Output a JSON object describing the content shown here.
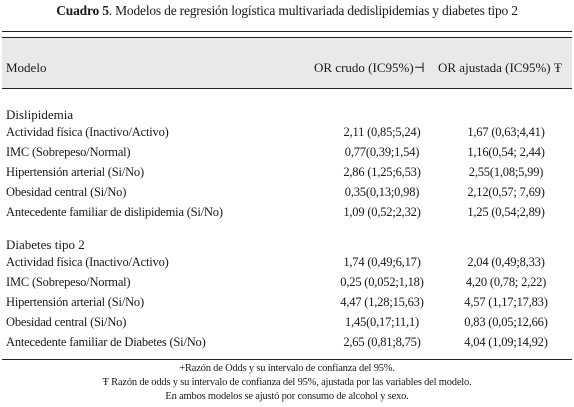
{
  "caption": {
    "number": "Cuadro 5",
    "text": ". Modelos de regresión logística multivariada dedislipidemias y diabetes tipo 2"
  },
  "table": {
    "headers": [
      "Modelo",
      "OR crudo (IC95%)⊣",
      "OR ajustada (IC95%) Ŧ"
    ],
    "sections": [
      {
        "title": "Dislipidemia",
        "rows": [
          [
            "Actividad física (Inactivo/Activo)",
            "2,11 (0,85;5,24)",
            "1,67 (0,63;4,41)"
          ],
          [
            "IMC (Sobrepeso/Normal)",
            "0,77(0,39;1,54)",
            "1,16(0,54; 2,44)"
          ],
          [
            "Hipertensión arterial (Si/No)",
            "2,86 (1,25;6,53)",
            "2,55(1,08;5,99)"
          ],
          [
            "Obesidad central (Si/No)",
            "0,35(0,13;0,98)",
            "2,12(0,57; 7,69)"
          ],
          [
            "Antecedente familiar de dislipidemia (Si/No)",
            "1,09 (0,52;2,32)",
            "1,25 (0,54;2,89)"
          ]
        ]
      },
      {
        "title": "Diabetes tipo 2",
        "rows": [
          [
            "Actividad física (Inactivo/Activo)",
            "1,74 (0,49;6,17)",
            "2,04 (0,49;8,33)"
          ],
          [
            "IMC (Sobrepeso/Normal)",
            "0,25 (0,052;1,18)",
            "4,20 (0,78; 2,22)"
          ],
          [
            "Hipertensión arterial (Si/No)",
            "4,47 (1,28;15,63)",
            "4,57 (1,17;17,83)"
          ],
          [
            "Obesidad central (Si/No)",
            "1,45(0,17;11,1)",
            "0,83 (0,05;12,66)"
          ],
          [
            "Antecedente familiar de Diabetes (Si/No)",
            "2,65 (0,81;8,75)",
            "4,04 (1,09;14,92)"
          ]
        ]
      }
    ]
  },
  "notes": [
    "+Razón de Odds y su intervalo de confianza del 95%.",
    "Ŧ Razón de odds y su intervalo de confianza del 95%, ajustada por las variables del modelo.",
    "En ambos modelos se ajustó por consumo de alcohol y sexo."
  ]
}
